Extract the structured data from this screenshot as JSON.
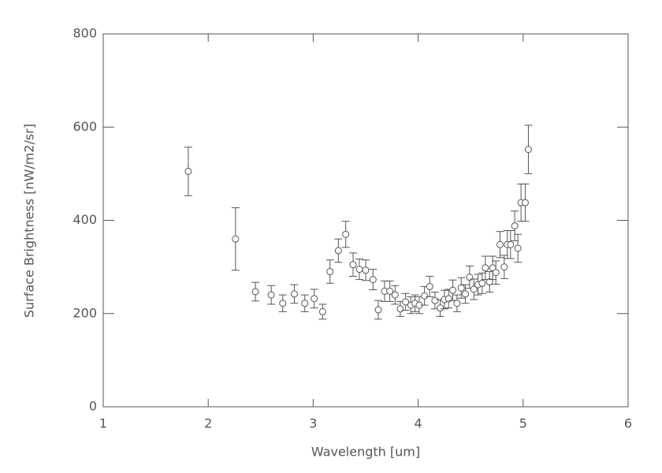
{
  "chart_data": {
    "type": "scatter",
    "xlabel": "Wavelength [um]",
    "ylabel": "Surface Brightness [nW/m2/sr]",
    "xlim": [
      1,
      6
    ],
    "xticks": [
      1,
      2,
      3,
      4,
      5,
      6
    ],
    "ylim": [
      0,
      800
    ],
    "yticks": [
      0,
      200,
      400,
      600,
      800
    ],
    "color": "#555555",
    "x": [
      1.81,
      2.26,
      2.45,
      2.6,
      2.71,
      2.82,
      2.92,
      3.01,
      3.09,
      3.16,
      3.24,
      3.31,
      3.38,
      3.44,
      3.5,
      3.57,
      3.62,
      3.68,
      3.73,
      3.78,
      3.83,
      3.88,
      3.93,
      3.97,
      4.01,
      4.06,
      4.11,
      4.16,
      4.21,
      4.25,
      4.29,
      4.33,
      4.37,
      4.41,
      4.45,
      4.49,
      4.53,
      4.57,
      4.61,
      4.64,
      4.68,
      4.71,
      4.74,
      4.78,
      4.82,
      4.85,
      4.88,
      4.92,
      4.95,
      4.98,
      5.02,
      5.05
    ],
    "values": [
      505,
      360,
      247,
      240,
      222,
      242,
      222,
      232,
      204,
      290,
      335,
      370,
      305,
      295,
      293,
      273,
      208,
      248,
      248,
      240,
      210,
      225,
      218,
      222,
      218,
      238,
      258,
      228,
      212,
      230,
      232,
      250,
      222,
      255,
      242,
      278,
      252,
      262,
      265,
      298,
      268,
      298,
      288,
      348,
      300,
      348,
      348,
      388,
      340,
      438,
      438,
      552
    ],
    "errors": [
      52,
      67,
      20,
      20,
      18,
      20,
      18,
      20,
      16,
      25,
      25,
      28,
      25,
      22,
      22,
      22,
      20,
      22,
      22,
      20,
      16,
      18,
      18,
      18,
      18,
      20,
      22,
      18,
      18,
      20,
      20,
      22,
      18,
      22,
      20,
      24,
      22,
      22,
      22,
      25,
      22,
      25,
      25,
      28,
      25,
      30,
      30,
      32,
      30,
      40,
      40,
      52
    ]
  }
}
